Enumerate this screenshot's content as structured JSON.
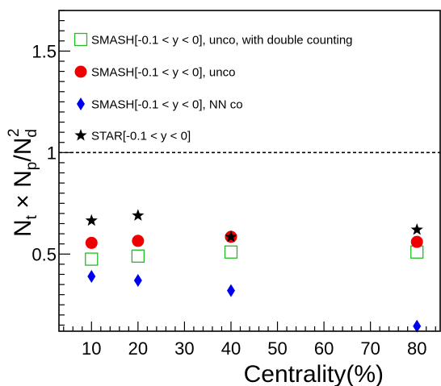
{
  "chart_data": {
    "type": "scatter",
    "xlabel": "Centrality(%)",
    "ylabel": "N_t × N_p/N_d^2",
    "xlim": [
      3,
      85
    ],
    "ylim": [
      0.12,
      1.7
    ],
    "x_ticks": [
      10,
      20,
      30,
      40,
      50,
      60,
      70,
      80
    ],
    "y_ticks": [
      0.5,
      1,
      1.5
    ],
    "y_tick_labels": [
      "0.5",
      "1",
      "1.5"
    ],
    "reference_line": {
      "y": 1,
      "style": "dashed"
    },
    "legend_position": "top-left",
    "series": [
      {
        "name": "SMASH[-0.1 < y < 0], unco, with double counting",
        "marker": "open-square",
        "color": "#22bb22",
        "x": [
          10,
          20,
          40,
          80
        ],
        "y": [
          0.475,
          0.49,
          0.51,
          0.51
        ]
      },
      {
        "name": "SMASH[-0.1 < y < 0], unco",
        "marker": "filled-circle",
        "color": "#ee0000",
        "x": [
          10,
          20,
          40,
          80
        ],
        "y": [
          0.555,
          0.565,
          0.585,
          0.56
        ]
      },
      {
        "name": "SMASH[-0.1 < y < 0], NN co",
        "marker": "filled-diamond",
        "color": "#0000ee",
        "x": [
          10,
          20,
          40,
          80
        ],
        "y": [
          0.39,
          0.37,
          0.32,
          0.145
        ]
      },
      {
        "name": "STAR[-0.1 < y < 0]",
        "marker": "filled-star",
        "color": "#000000",
        "x": [
          10,
          20,
          40,
          80
        ],
        "y": [
          0.665,
          0.69,
          0.585,
          0.62
        ]
      }
    ]
  }
}
